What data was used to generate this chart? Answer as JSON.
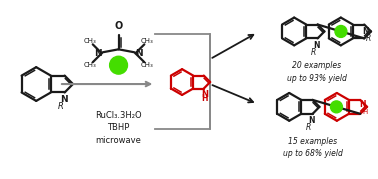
{
  "background_color": "#ffffff",
  "black": "#1a1a1a",
  "red": "#cc0000",
  "green": "#44dd00",
  "gray": "#888888",
  "line_width": 1.6,
  "figsize": [
    3.78,
    1.79
  ],
  "dpi": 100,
  "reaction_conditions": "RuCl₃.3H₂O\nTBHP\nmicrowave",
  "product1_label": "20 examples\nup to 93% yield",
  "product2_label": "15 examples\nup to 68% yield"
}
